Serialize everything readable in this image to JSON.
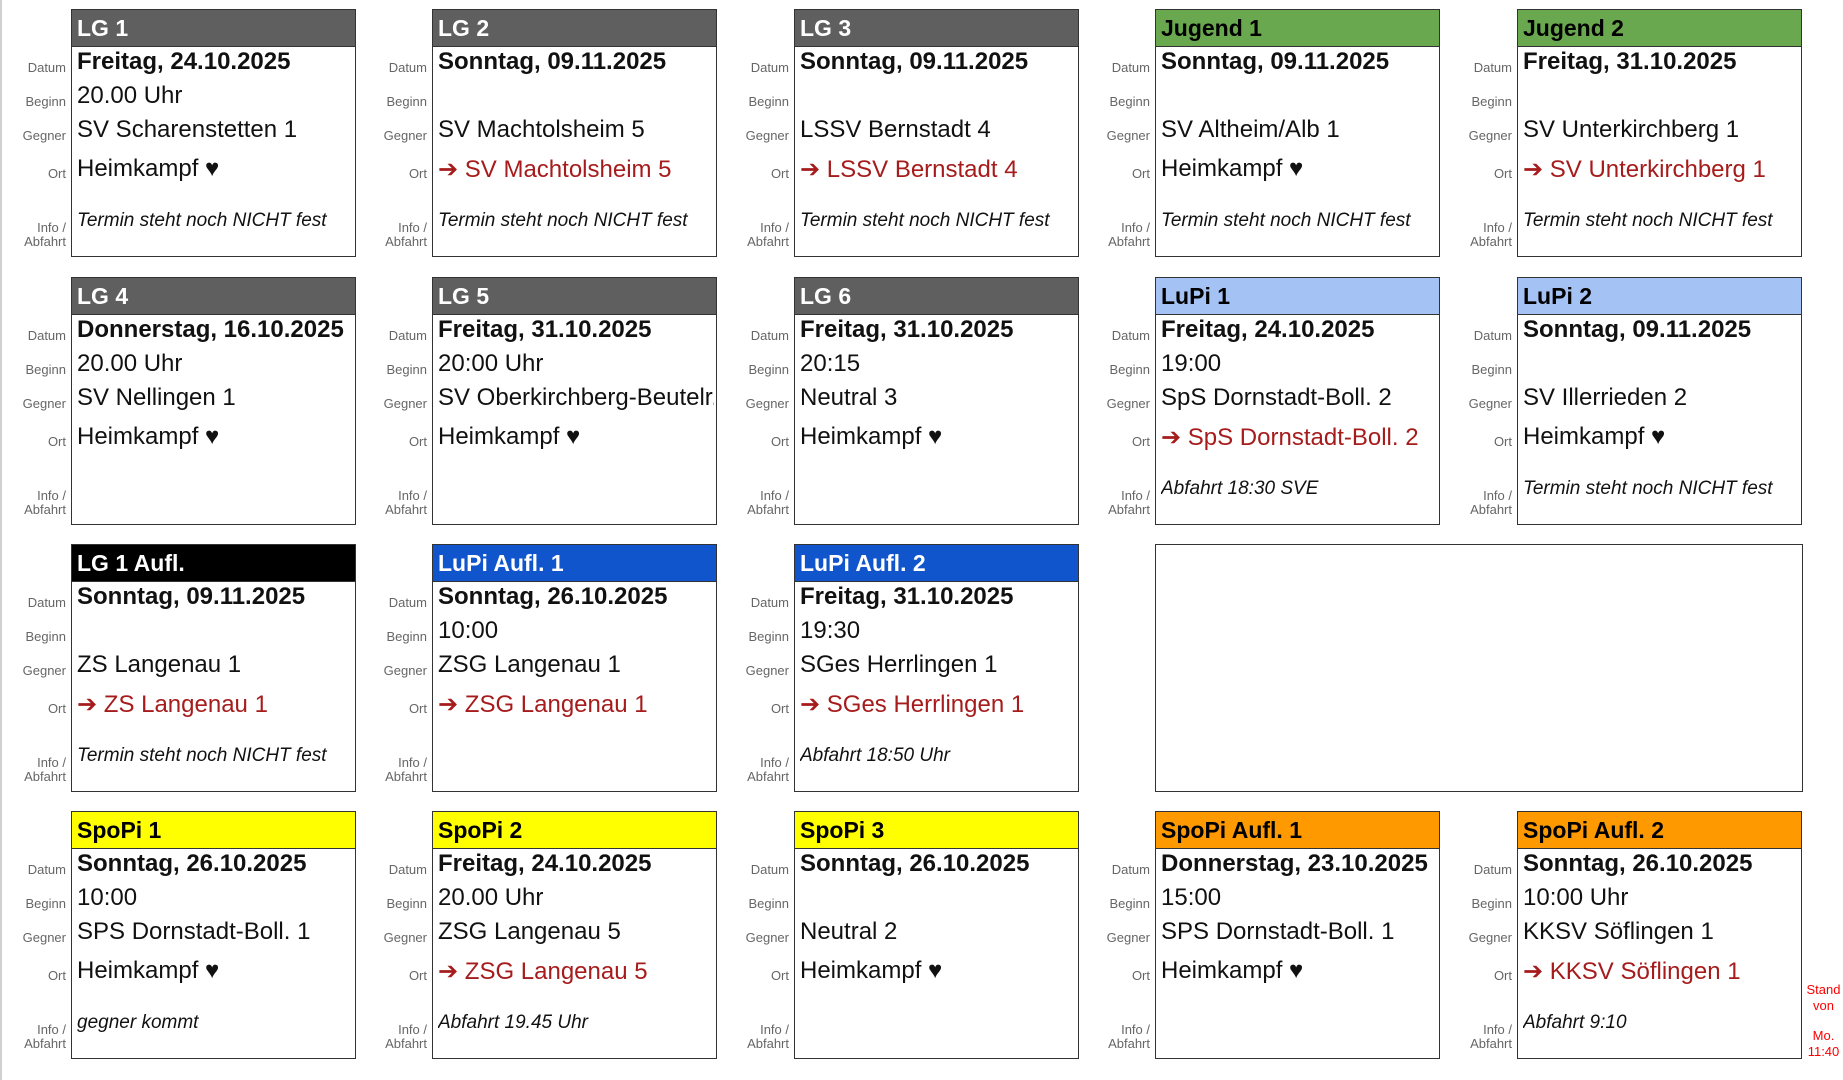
{
  "labels": {
    "date": "Datum",
    "time": "Beginn",
    "opponent": "Gegner",
    "place": "Ort",
    "info": "Info /",
    "info2": "Abfahrt"
  },
  "stand": {
    "line1": "Stand",
    "line2": "von",
    "line3": "Mo.",
    "line4": "11:40"
  },
  "colors": {
    "gray": "#5f5f5f",
    "green": "#6aa84f",
    "lightblue": "#a4c2f4",
    "black": "#000000",
    "blue": "#1155cc",
    "yellow": "#ffff00",
    "orange": "#ff9900",
    "away_text": "#a61c1c"
  },
  "cards": [
    {
      "team": "LG 1",
      "date": "Freitag, 24.10.2025",
      "time": "20.00 Uhr",
      "opponent": "SV Scharenstetten 1",
      "place": "Heimkampf ♥",
      "away": false,
      "info": "Termin steht noch NICHT fest",
      "color": "#5f5f5f",
      "text": "#fff"
    },
    {
      "team": "LG 2",
      "date": "Sonntag, 09.11.2025",
      "time": "",
      "opponent": "SV Machtolsheim 5",
      "place": "➔ SV Machtolsheim 5",
      "away": true,
      "info": "Termin steht noch NICHT fest",
      "color": "#5f5f5f",
      "text": "#fff"
    },
    {
      "team": "LG 3",
      "date": "Sonntag, 09.11.2025",
      "time": "",
      "opponent": "LSSV Bernstadt 4",
      "place": "➔ LSSV Bernstadt 4",
      "away": true,
      "info": "Termin steht noch NICHT fest",
      "color": "#5f5f5f",
      "text": "#fff"
    },
    {
      "team": "Jugend 1",
      "date": "Sonntag, 09.11.2025",
      "time": "",
      "opponent": "SV Altheim/Alb 1",
      "place": "Heimkampf ♥",
      "away": false,
      "info": "Termin steht noch NICHT fest",
      "color": "#6aa84f",
      "text": "#000"
    },
    {
      "team": "Jugend 2",
      "date": "Freitag, 31.10.2025",
      "time": "",
      "opponent": "SV Unterkirchberg 1",
      "place": "➔ SV Unterkirchberg 1",
      "away": true,
      "info": "Termin steht noch NICHT fest",
      "color": "#6aa84f",
      "text": "#000"
    },
    {
      "team": "LG 4",
      "date": "Donnerstag, 16.10.2025",
      "time": "20.00 Uhr",
      "opponent": "SV Nellingen 1",
      "place": "Heimkampf ♥",
      "away": false,
      "info": "",
      "color": "#5f5f5f",
      "text": "#fff"
    },
    {
      "team": "LG 5",
      "date": "Freitag, 31.10.2025",
      "time": "20:00 Uhr",
      "opponent": "SV Oberkirchberg-Beutelr.",
      "place": "Heimkampf ♥",
      "away": false,
      "info": "",
      "color": "#5f5f5f",
      "text": "#fff"
    },
    {
      "team": "LG 6",
      "date": "Freitag, 31.10.2025",
      "time": "20:15",
      "opponent": "Neutral 3",
      "place": "Heimkampf ♥",
      "away": false,
      "info": "",
      "color": "#5f5f5f",
      "text": "#fff"
    },
    {
      "team": "LuPi 1",
      "date": "Freitag, 24.10.2025",
      "time": "19:00",
      "opponent": "SpS Dornstadt-Boll. 2",
      "place": "➔ SpS Dornstadt-Boll. 2",
      "away": true,
      "info": "Abfahrt 18:30 SVE",
      "color": "#a4c2f4",
      "text": "#000"
    },
    {
      "team": "LuPi 2",
      "date": "Sonntag, 09.11.2025",
      "time": "",
      "opponent": "SV Illerrieden 2",
      "place": "Heimkampf ♥",
      "away": false,
      "info": "Termin steht noch NICHT fest",
      "color": "#a4c2f4",
      "text": "#000"
    },
    {
      "team": "LG 1 Aufl.",
      "date": "Sonntag, 09.11.2025",
      "time": "",
      "opponent": "ZS Langenau 1",
      "place": "➔ ZS Langenau 1",
      "away": true,
      "info": "Termin steht noch NICHT fest",
      "color": "#000000",
      "text": "#fff"
    },
    {
      "team": "LuPi Aufl. 1",
      "date": "Sonntag, 26.10.2025",
      "time": "10:00",
      "opponent": "ZSG Langenau 1",
      "place": "➔ ZSG Langenau 1",
      "away": true,
      "info": "",
      "color": "#1155cc",
      "text": "#fff"
    },
    {
      "team": "LuPi Aufl. 2",
      "date": "Freitag, 31.10.2025",
      "time": "19:30",
      "opponent": "SGes Herrlingen 1",
      "place": "➔ SGes Herrlingen 1",
      "away": true,
      "info": "Abfahrt 18:50 Uhr",
      "color": "#1155cc",
      "text": "#fff"
    },
    {
      "team": "SpoPi 1",
      "date": "Sonntag, 26.10.2025",
      "time": "10:00",
      "opponent": "SPS Dornstadt-Boll. 1",
      "place": "Heimkampf ♥",
      "away": false,
      "info": "gegner kommt",
      "color": "#ffff00",
      "text": "#000"
    },
    {
      "team": "SpoPi 2",
      "date": "Freitag, 24.10.2025",
      "time": "20.00 Uhr",
      "opponent": "ZSG Langenau 5",
      "place": "➔ ZSG Langenau 5",
      "away": true,
      "info": "Abfahrt 19.45 Uhr",
      "color": "#ffff00",
      "text": "#000"
    },
    {
      "team": "SpoPi 3",
      "date": "Sonntag, 26.10.2025",
      "time": "",
      "opponent": "Neutral 2",
      "place": "Heimkampf ♥",
      "away": false,
      "info": "",
      "color": "#ffff00",
      "text": "#000"
    },
    {
      "team": "SpoPi Aufl. 1",
      "date": "Donnerstag, 23.10.2025",
      "time": "15:00",
      "opponent": "SPS Dornstadt-Boll. 1",
      "place": "Heimkampf ♥",
      "away": false,
      "info": "",
      "color": "#ff9900",
      "text": "#000"
    },
    {
      "team": "SpoPi Aufl. 2",
      "date": "Sonntag, 26.10.2025",
      "time": "10:00 Uhr",
      "opponent": "KKSV Söflingen 1",
      "place": "➔ KKSV Söflingen 1",
      "away": true,
      "info": "Abfahrt 9:10",
      "color": "#ff9900",
      "text": "#000"
    }
  ]
}
